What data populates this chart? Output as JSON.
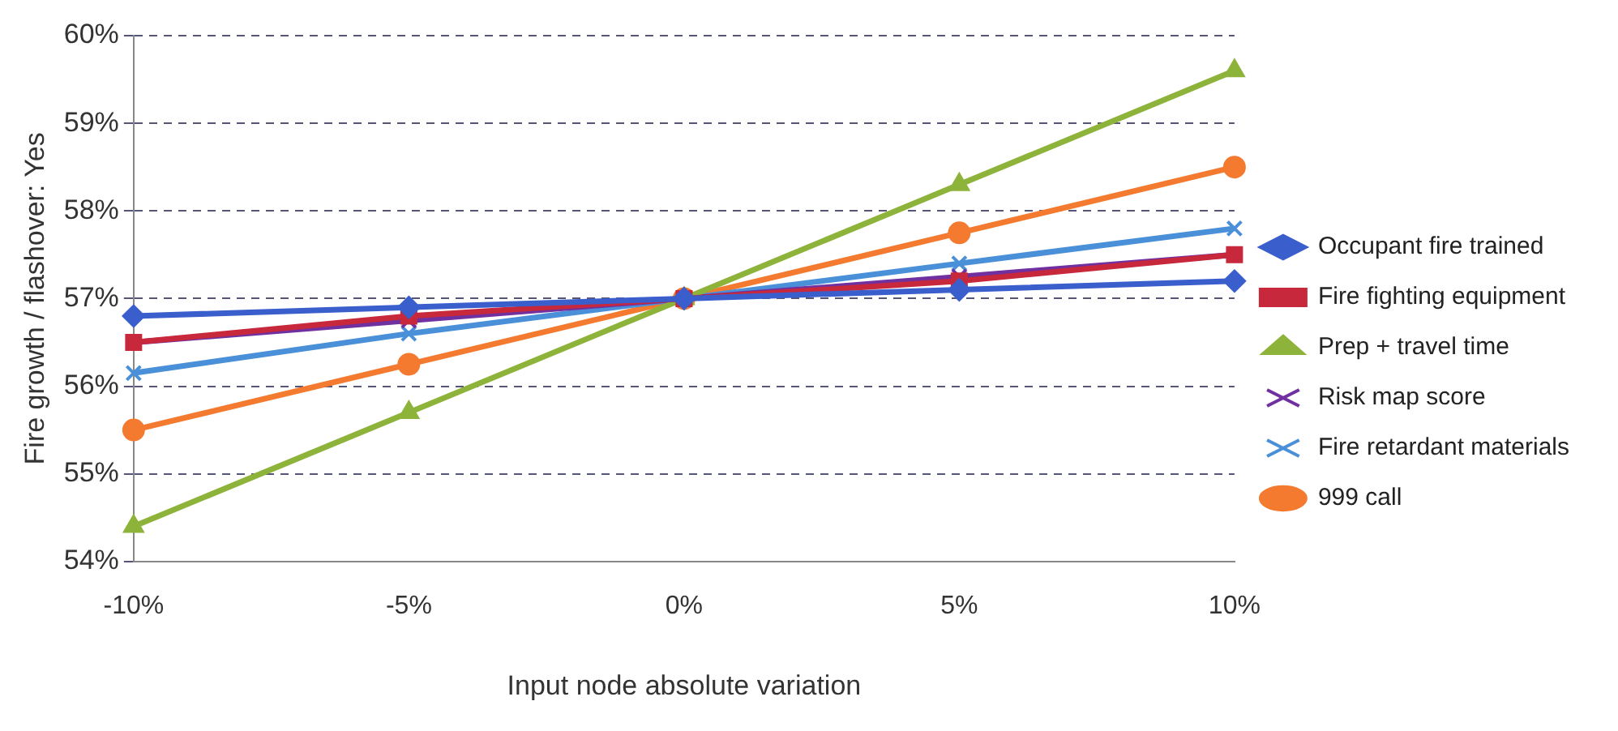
{
  "chart_data": {
    "type": "line",
    "xlabel": "Input node absolute variation",
    "ylabel": "Fire growth / flashover: Yes",
    "categories": [
      "-10%",
      "-5%",
      "0%",
      "5%",
      "10%"
    ],
    "ylim": [
      54,
      60
    ],
    "yticks": [
      {
        "value": 54,
        "label": "54%"
      },
      {
        "value": 55,
        "label": "55%"
      },
      {
        "value": 56,
        "label": "56%"
      },
      {
        "value": 57,
        "label": "57%"
      },
      {
        "value": 58,
        "label": "58%"
      },
      {
        "value": 59,
        "label": "59%"
      },
      {
        "value": 60,
        "label": "60%"
      }
    ],
    "grid": "y",
    "legend": "right",
    "series": [
      {
        "name": "Occupant fire trained",
        "color": "#3a5fcd",
        "marker": "diamond",
        "values": [
          56.8,
          56.9,
          57,
          57.1,
          57.2
        ]
      },
      {
        "name": "Fire fighting equipment",
        "color": "#c8283c",
        "marker": "square",
        "values": [
          56.5,
          56.8,
          57,
          57.2,
          57.5
        ]
      },
      {
        "name": "Prep + travel time",
        "color": "#8db33a",
        "marker": "triangle",
        "values": [
          54.4,
          55.7,
          57,
          58.3,
          59.6
        ]
      },
      {
        "name": "Risk map score",
        "color": "#7030a0",
        "marker": "cross",
        "values": [
          56.5,
          56.75,
          57,
          57.25,
          57.5
        ]
      },
      {
        "name": "Fire retardant materials",
        "color": "#4a90d9",
        "marker": "cross",
        "values": [
          56.15,
          56.6,
          57,
          57.4,
          57.8
        ]
      },
      {
        "name": "999 call",
        "color": "#f47a30",
        "marker": "circle",
        "values": [
          55.5,
          56.25,
          57,
          57.75,
          58.5
        ]
      }
    ]
  }
}
